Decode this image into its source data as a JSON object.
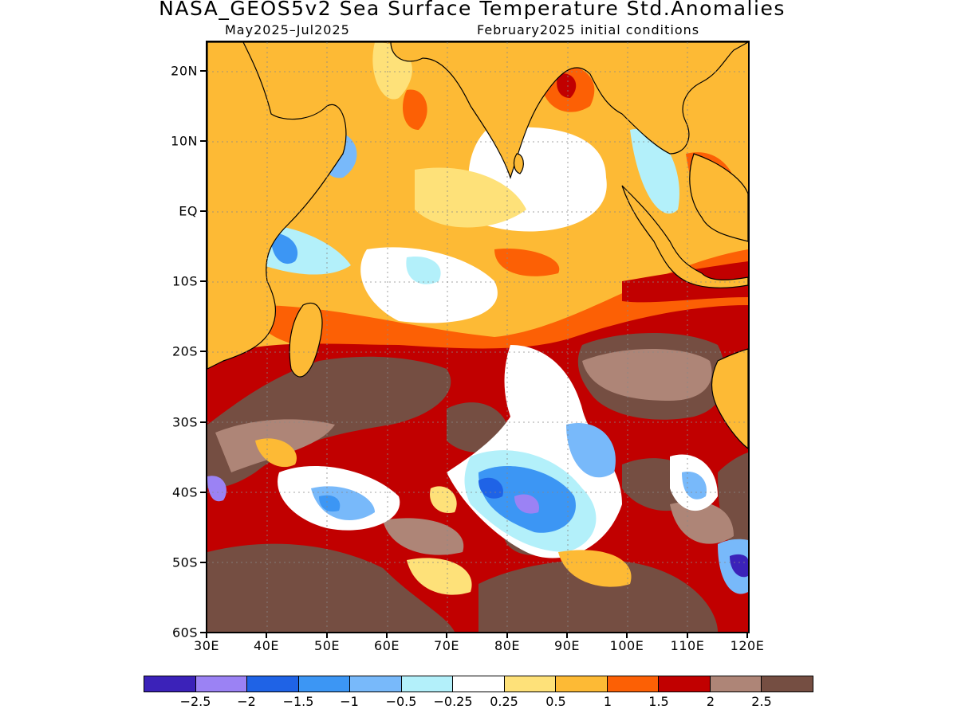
{
  "header": {
    "title": "NASA_GEOS5v2 Sea Surface Temperature Std.Anomalies",
    "period": "May2025–Jul2025",
    "init": "February2025 initial conditions"
  },
  "axes": {
    "lat_labels": [
      "20N",
      "10N",
      "EQ",
      "10S",
      "20S",
      "30S",
      "40S",
      "50S",
      "60S"
    ],
    "lon_labels": [
      "30E",
      "40E",
      "50E",
      "60E",
      "70E",
      "80E",
      "90E",
      "100E",
      "110E",
      "120E"
    ]
  },
  "colorbar": {
    "colors": [
      "#3b22b9",
      "#9b82f4",
      "#1f63e6",
      "#3c96f4",
      "#78b9fa",
      "#b3f0fa",
      "#ffffff",
      "#fee179",
      "#fdba35",
      "#fc6005",
      "#c10000",
      "#ae8577",
      "#754e42"
    ],
    "labels": [
      "−2.5",
      "−2",
      "−1.5",
      "−1",
      "−0.5",
      "−0.25",
      "0.25",
      "0.5",
      "1",
      "1.5",
      "2",
      "2.5"
    ]
  }
}
